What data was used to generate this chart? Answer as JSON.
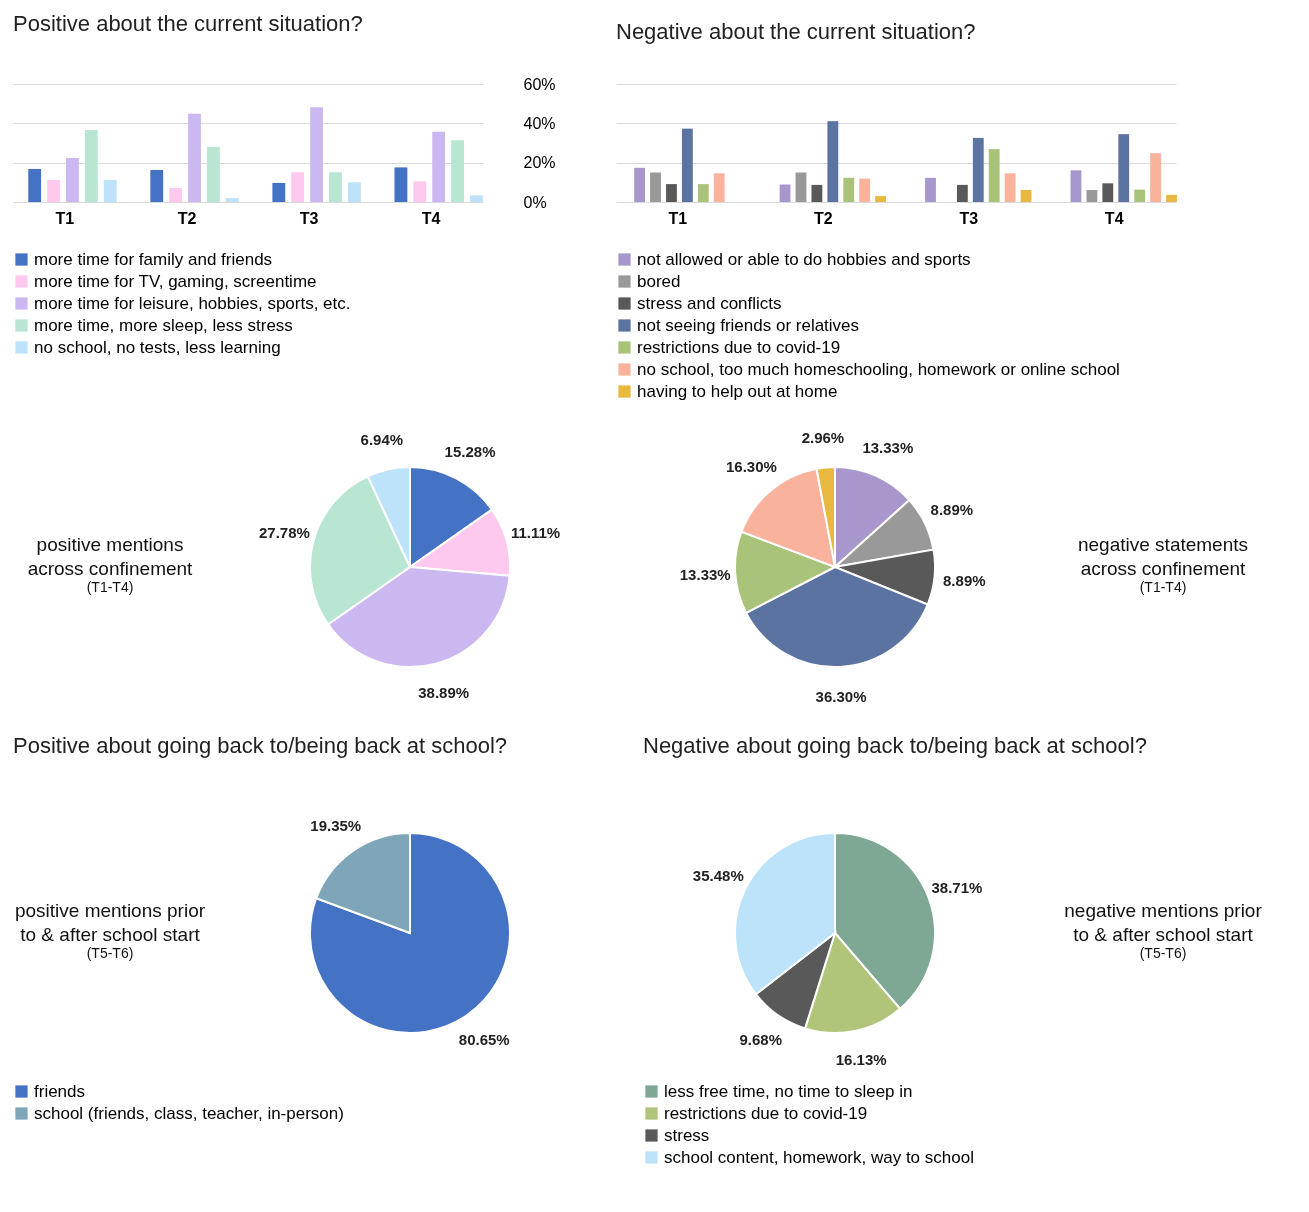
{
  "chart_data": [
    {
      "type": "bar",
      "title": "Positive about the current situation?",
      "categories": [
        "T1",
        "T2",
        "T3",
        "T4"
      ],
      "ylim": [
        0,
        60
      ],
      "yticks": [
        {
          "value": 0,
          "label": "0%"
        },
        {
          "value": 20,
          "label": "20%"
        },
        {
          "value": 40,
          "label": "40%"
        },
        {
          "value": 60,
          "label": "60%"
        }
      ],
      "grid": "y",
      "legend": "bottom",
      "series": [
        {
          "name": "more time for family and friends",
          "color": "#4472c4",
          "values": [
            16.8,
            16.3,
            9.7,
            17.6
          ]
        },
        {
          "name": "more time for TV, gaming, screentime",
          "color": "#ffc8ee",
          "values": [
            11.2,
            7.1,
            15.1,
            10.5
          ]
        },
        {
          "name": "more time for leisure, hobbies, sports, etc.",
          "color": "#cbb8f0",
          "values": [
            22.4,
            44.9,
            48.2,
            35.7
          ]
        },
        {
          "name": "more time, more sleep, less stress",
          "color": "#b8e6d2",
          "values": [
            36.6,
            28,
            15.1,
            31.4
          ]
        },
        {
          "name": "no school, no tests, less learning",
          "color": "#bde3fa",
          "values": [
            11.2,
            2,
            10,
            3.4
          ]
        }
      ]
    },
    {
      "type": "bar",
      "title": "Negative about the current situation?",
      "categories": [
        "T1",
        "T2",
        "T3",
        "T4"
      ],
      "ylim": [
        0,
        60
      ],
      "yticks": [
        0,
        20,
        40,
        60
      ],
      "grid": "y",
      "legend": "bottom",
      "tick_labels": "x",
      "series": [
        {
          "name": "not allowed or able to do hobbies and sports",
          "color": "#a897cc",
          "values": [
            17.4,
            8.9,
            12.3,
            16.1
          ]
        },
        {
          "name": "bored",
          "color": "#999999",
          "values": [
            15,
            15,
            null,
            6.1
          ]
        },
        {
          "name": "stress and conflicts",
          "color": "#595959",
          "values": [
            9.1,
            8.7,
            8.7,
            9.5
          ]
        },
        {
          "name": "not seeing friends or relatives",
          "color": "#5b73a0",
          "values": [
            37.3,
            41.1,
            32.6,
            34.5
          ]
        },
        {
          "name": "restrictions due to covid-19",
          "color": "#a9c47a",
          "values": [
            9.1,
            12.3,
            26.9,
            6.3
          ]
        },
        {
          "name": "no school, too much homeschooling, homework or online school",
          "color": "#f9b29c",
          "values": [
            14.6,
            11.9,
            14.6,
            24.8
          ]
        },
        {
          "name": "having to help out at home",
          "color": "#e9b840",
          "values": [
            null,
            3,
            6.1,
            3.6
          ]
        }
      ]
    },
    {
      "type": "pie",
      "categories": [
        null,
        null,
        null,
        null,
        null
      ],
      "values": [
        15.28,
        11.11,
        38.89,
        27.78,
        6.94
      ],
      "value_labels": [
        "15.28%",
        "11.11%",
        "38.89%",
        "27.78%",
        "6.94%"
      ],
      "colors": [
        "#4472c4",
        "#ffc8ee",
        "#cbb8f0",
        "#b8e6d2",
        "#bde3fa"
      ],
      "annotations": [
        "positive mentions\nacross confinement",
        "(T1-T4)"
      ]
    },
    {
      "type": "pie",
      "categories": [
        null,
        null,
        null,
        null,
        null,
        null,
        null
      ],
      "values": [
        13.33,
        8.89,
        8.89,
        36.3,
        13.33,
        16.3,
        2.96
      ],
      "value_labels": [
        "13.33%",
        "8.89%",
        "8.89%",
        "36.30%",
        "13.33%",
        "16.30%",
        "2.96%"
      ],
      "colors": [
        "#a897cc",
        "#999999",
        "#595959",
        "#5b73a0",
        "#a9c47a",
        "#f9b29c",
        "#e9b840"
      ],
      "annotations": [
        "negative statements\nacross confinement",
        "(T1-T4)"
      ]
    },
    {
      "type": "pie",
      "title": "Positive about going back to/being back at school?",
      "categories": [
        "friends",
        "school (friends, class, teacher, in-person)"
      ],
      "values": [
        80.65,
        19.35
      ],
      "value_labels": [
        "80.65%",
        "19.35%"
      ],
      "colors": [
        "#4472c4",
        "#7ea6b8"
      ],
      "legend": "bottom",
      "annotations": [
        "positive mentions prior\nto & after school start",
        "(T5-T6)"
      ]
    },
    {
      "type": "pie",
      "title": "Negative about going back to/being back at school?",
      "categories": [
        "less free time, no time to sleep in",
        "restrictions due to covid-19",
        "stress",
        "school content, homework, way to school"
      ],
      "values": [
        38.71,
        16.13,
        9.68,
        35.48
      ],
      "value_labels": [
        "38.71%",
        "16.13%",
        "9.68%",
        "35.48%"
      ],
      "colors": [
        "#7ea894",
        "#b0c47a",
        "#595959",
        "#bde3fa"
      ],
      "legend": "bottom",
      "annotations": [
        "negative mentions prior\nto & after school start",
        "(T5-T6)"
      ]
    }
  ]
}
